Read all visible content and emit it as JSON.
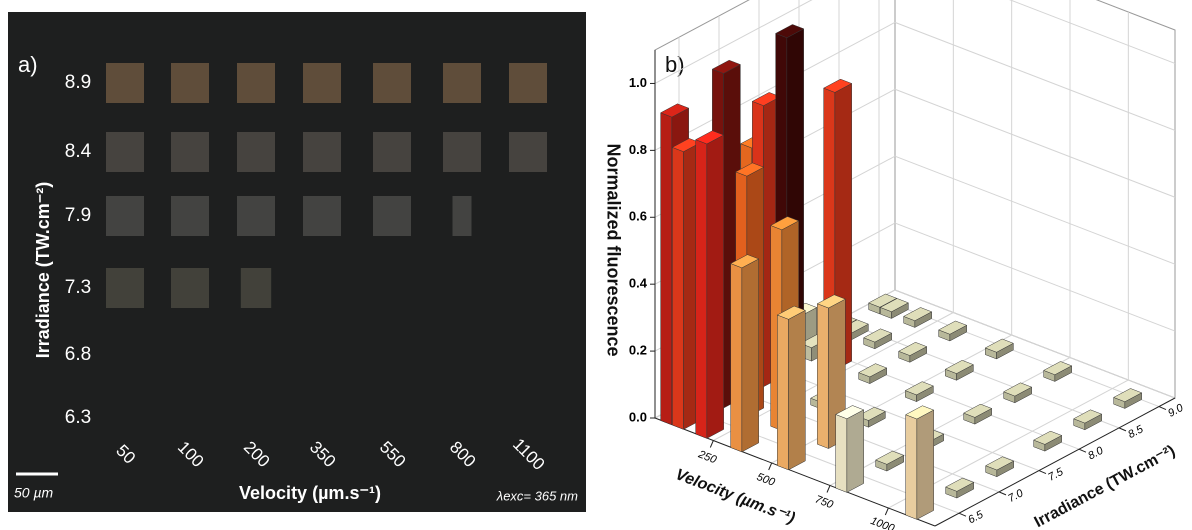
{
  "panel_a": {
    "label": "a)",
    "y_axis_label": "Irradiance (TW.cm⁻²)",
    "rows": [
      "8.9",
      "8.4",
      "7.9",
      "7.3",
      "6.8",
      "6.3"
    ],
    "columns": [
      "50",
      "100",
      "200",
      "350",
      "550",
      "800",
      "1100"
    ],
    "x_axis_label": "Velocity (µm.s⁻¹)",
    "scale_bar": "50 µm",
    "excitation": "λexc= 365 nm"
  },
  "chart_data": {
    "type": "bar3d",
    "label": "b)",
    "z_axis_label": "Normalized fluorescence",
    "x_axis_label": "Velocity (µm.s⁻¹)",
    "y_axis_label": "Irradiance (TW.cm⁻²)",
    "x": [
      50,
      100,
      200,
      350,
      550,
      800,
      1100
    ],
    "y": [
      6.3,
      6.8,
      7.3,
      7.9,
      8.4,
      8.9
    ],
    "values": [
      [
        0.92,
        0.83,
        0.88,
        0.55,
        0.45,
        0.22,
        0.3
      ],
      [
        0.78,
        1.0,
        0.72,
        0.6,
        0.42,
        0.02,
        0.02
      ],
      [
        0.7,
        0.84,
        1.07,
        0.02,
        0.02,
        0.02,
        0.02
      ],
      [
        0.12,
        0.04,
        0.83,
        0.02,
        0.02,
        0.02,
        0.02
      ],
      [
        0.02,
        0.02,
        0.02,
        0.02,
        0.02,
        0.02,
        0.02
      ],
      [
        0.02,
        0.02,
        0.02,
        0.02,
        0.02,
        0.02,
        0.02
      ]
    ],
    "colormap": [
      "#bdbd9e",
      "#f3eccb",
      "#f7b46a",
      "#f37c22",
      "#e1261a",
      "#2a0404"
    ],
    "xlim": [
      0,
      1200
    ],
    "ylim": [
      6.2,
      9.2
    ],
    "zlim": [
      0,
      1.1
    ],
    "xticks": [
      250,
      500,
      750,
      1000
    ],
    "yticks": [
      6.5,
      {
        "value": 7,
        "label": "7.0"
      },
      7.5,
      {
        "value": 8,
        "label": "8.0"
      },
      8.5,
      {
        "value": 9,
        "label": "9.0"
      }
    ],
    "zticks": [
      {
        "value": 0,
        "label": "0.0"
      },
      0.2,
      0.4,
      0.6,
      0.8,
      {
        "value": 1,
        "label": "1.0"
      }
    ],
    "grid": true
  }
}
